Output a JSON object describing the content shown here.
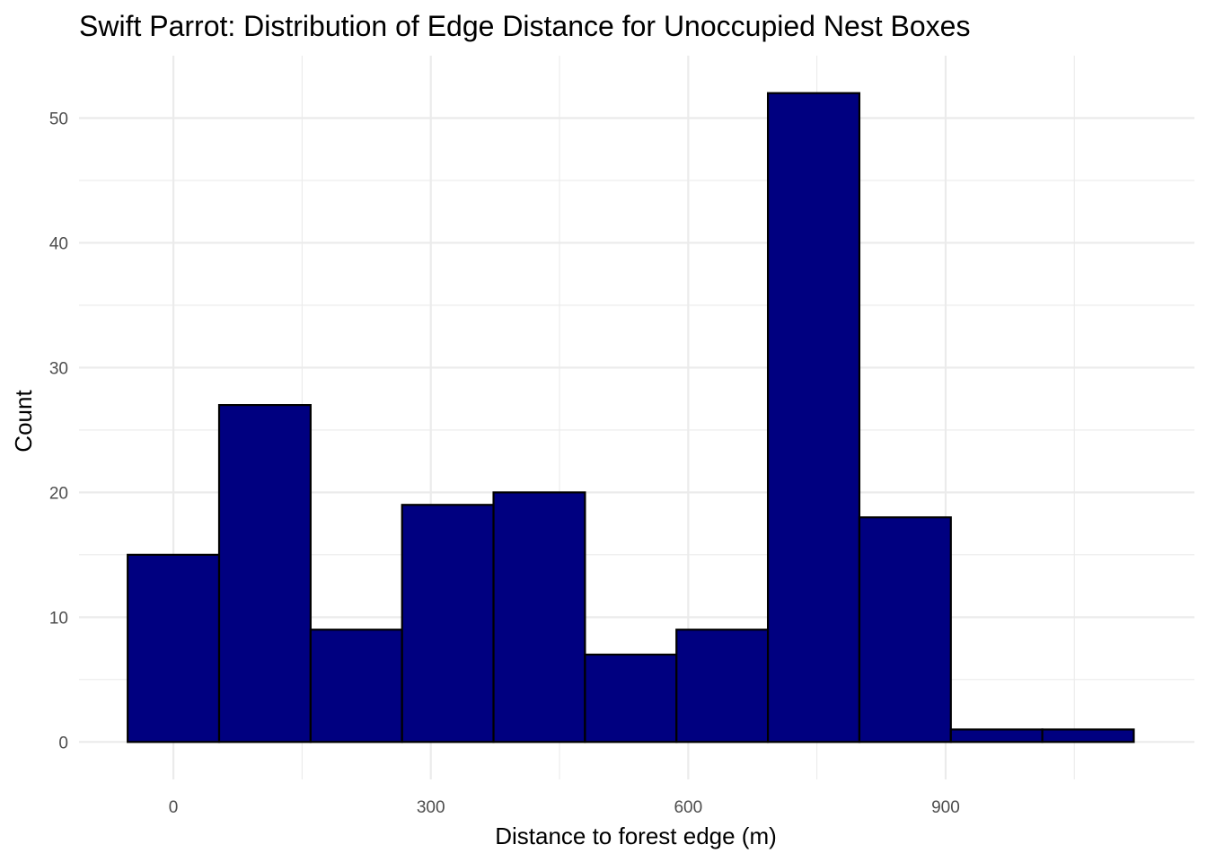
{
  "chart_data": {
    "type": "bar",
    "title": "Swift Parrot: Distribution of Edge Distance for Unoccupied Nest Boxes",
    "xlabel": "Distance to forest edge (m)",
    "ylabel": "Count",
    "bin_width": 106.6,
    "bin_centers": [
      0,
      106.6,
      213.2,
      319.8,
      426.4,
      533.0,
      639.6,
      746.2,
      852.8,
      959.4,
      1066.0
    ],
    "values": [
      15,
      27,
      9,
      19,
      20,
      7,
      9,
      52,
      18,
      1,
      1
    ],
    "xlim": [
      -110,
      1190
    ],
    "ylim": [
      -3,
      55
    ],
    "x_ticks": [
      0,
      300,
      600,
      900
    ],
    "x_tick_labels": [
      "0",
      "300",
      "600",
      "900"
    ],
    "y_ticks": [
      0,
      10,
      20,
      30,
      40,
      50
    ],
    "y_tick_labels": [
      "0",
      "10",
      "20",
      "30",
      "40",
      "50"
    ],
    "bar_fill": "#000080",
    "bar_outline": "#000000",
    "grid": true,
    "legend": "none"
  }
}
